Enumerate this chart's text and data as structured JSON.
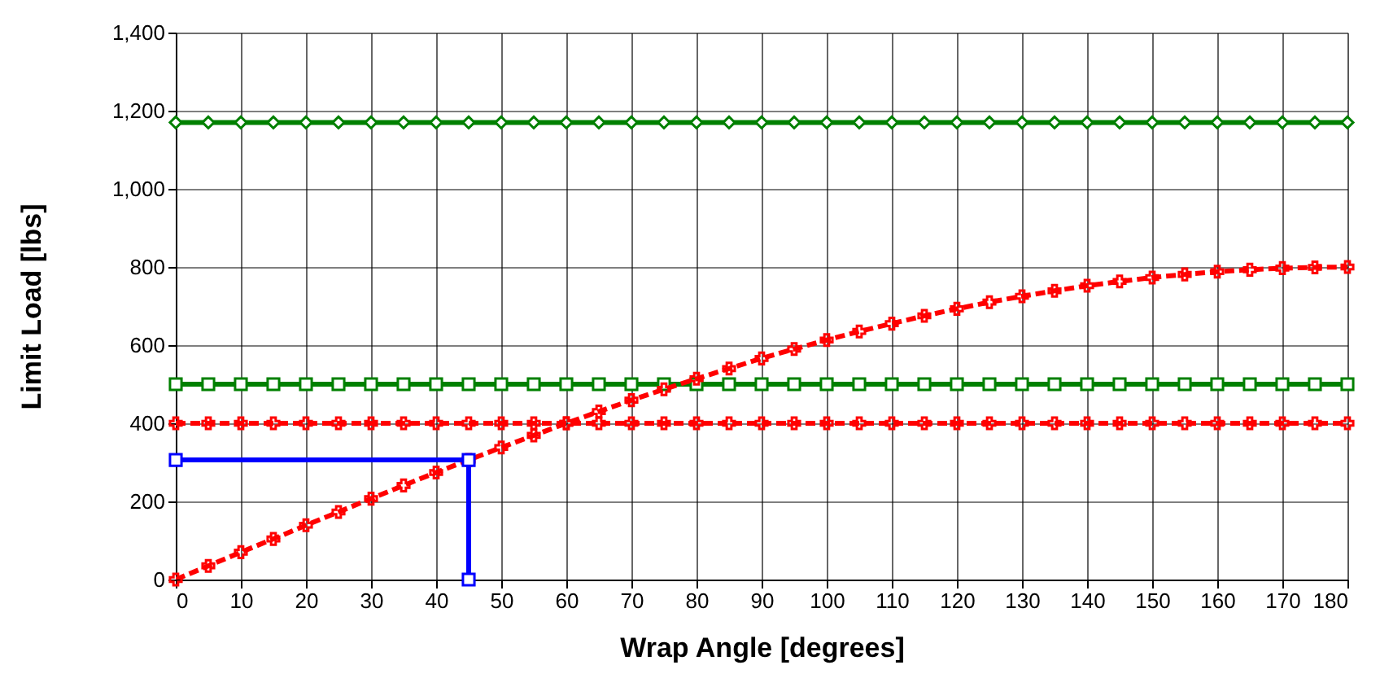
{
  "chart_data": {
    "type": "line",
    "xlabel": "Wrap Angle [degrees]",
    "ylabel": "Limit Load [lbs]",
    "xlim": [
      0,
      180
    ],
    "xticks": [
      0,
      10,
      20,
      30,
      40,
      50,
      60,
      70,
      80,
      90,
      100,
      110,
      120,
      130,
      140,
      150,
      160,
      170,
      180
    ],
    "ylim": [
      0,
      1400
    ],
    "yticks": [
      0,
      200,
      400,
      600,
      800,
      {
        "value": 1000,
        "label": "1,000"
      },
      {
        "value": 1200,
        "label": "1,200"
      },
      {
        "value": 1400,
        "label": "1,400"
      }
    ],
    "grid": true,
    "series": [
      {
        "color": "#008000",
        "marker": "diamond",
        "line_style": "solid",
        "x": [
          0,
          5,
          10,
          15,
          20,
          25,
          30,
          35,
          40,
          45,
          50,
          55,
          60,
          65,
          70,
          75,
          80,
          85,
          90,
          95,
          100,
          105,
          110,
          115,
          120,
          125,
          130,
          135,
          140,
          145,
          150,
          155,
          160,
          165,
          170,
          175,
          180
        ],
        "values": [
          1170,
          1170,
          1170,
          1170,
          1170,
          1170,
          1170,
          1170,
          1170,
          1170,
          1170,
          1170,
          1170,
          1170,
          1170,
          1170,
          1170,
          1170,
          1170,
          1170,
          1170,
          1170,
          1170,
          1170,
          1170,
          1170,
          1170,
          1170,
          1170,
          1170,
          1170,
          1170,
          1170,
          1170,
          1170,
          1170,
          1170
        ]
      },
      {
        "color": "#008000",
        "marker": "square",
        "line_style": "solid",
        "x": [
          0,
          5,
          10,
          15,
          20,
          25,
          30,
          35,
          40,
          45,
          50,
          55,
          60,
          65,
          70,
          75,
          80,
          85,
          90,
          95,
          100,
          105,
          110,
          115,
          120,
          125,
          130,
          135,
          140,
          145,
          150,
          155,
          160,
          165,
          170,
          175,
          180
        ],
        "values": [
          500,
          500,
          500,
          500,
          500,
          500,
          500,
          500,
          500,
          500,
          500,
          500,
          500,
          500,
          500,
          500,
          500,
          500,
          500,
          500,
          500,
          500,
          500,
          500,
          500,
          500,
          500,
          500,
          500,
          500,
          500,
          500,
          500,
          500,
          500,
          500,
          500
        ]
      },
      {
        "color": "#ff0000",
        "marker": "cross",
        "line_style": "dashed",
        "x": [
          0,
          5,
          10,
          15,
          20,
          25,
          30,
          35,
          40,
          45,
          50,
          55,
          60,
          65,
          70,
          75,
          80,
          85,
          90,
          95,
          100,
          105,
          110,
          115,
          120,
          125,
          130,
          135,
          140,
          145,
          150,
          155,
          160,
          165,
          170,
          175,
          180
        ],
        "values": [
          400,
          400,
          400,
          400,
          400,
          400,
          400,
          400,
          400,
          400,
          400,
          400,
          400,
          400,
          400,
          400,
          400,
          400,
          400,
          400,
          400,
          400,
          400,
          400,
          400,
          400,
          400,
          400,
          400,
          400,
          400,
          400,
          400,
          400,
          400,
          400,
          400
        ]
      },
      {
        "color": "#ff0000",
        "marker": "cross",
        "line_style": "dashed",
        "x": [
          0,
          5,
          10,
          15,
          20,
          25,
          30,
          35,
          40,
          45,
          50,
          55,
          60,
          65,
          70,
          75,
          80,
          85,
          90,
          95,
          100,
          105,
          110,
          115,
          120,
          125,
          130,
          135,
          140,
          145,
          150,
          155,
          160,
          165,
          170,
          175,
          180
        ],
        "values": [
          0,
          35,
          70,
          104,
          139,
          173,
          207,
          241,
          274,
          306,
          338,
          369,
          400,
          430,
          459,
          487,
          514,
          540,
          566,
          590,
          613,
          635,
          655,
          675,
          693,
          710,
          725,
          739,
          752,
          763,
          773,
          781,
          788,
          793,
          797,
          799,
          800
        ]
      },
      {
        "color": "#0000ff",
        "marker": "square",
        "line_style": "solid",
        "x": [
          0,
          45,
          45
        ],
        "values": [
          306,
          306,
          0
        ]
      }
    ]
  }
}
